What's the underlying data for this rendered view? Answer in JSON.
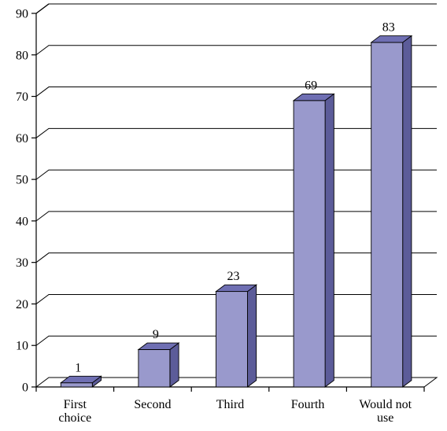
{
  "chart_data": {
    "type": "bar",
    "categories": [
      "First choice",
      "Second",
      "Third",
      "Fourth",
      "Would not use"
    ],
    "values": [
      1,
      9,
      23,
      69,
      83
    ],
    "data_labels": [
      "1",
      "9",
      "23",
      "69",
      "83"
    ],
    "ylim": [
      0,
      90
    ],
    "yticks": [
      0,
      10,
      20,
      30,
      40,
      50,
      60,
      70,
      80,
      90
    ],
    "grid": true,
    "legend": "none",
    "three_d": true,
    "colors": {
      "bar_front": "#9999cc",
      "bar_side": "#5c5c99",
      "bar_top": "#6f6fb3",
      "grid": "#000000"
    }
  }
}
